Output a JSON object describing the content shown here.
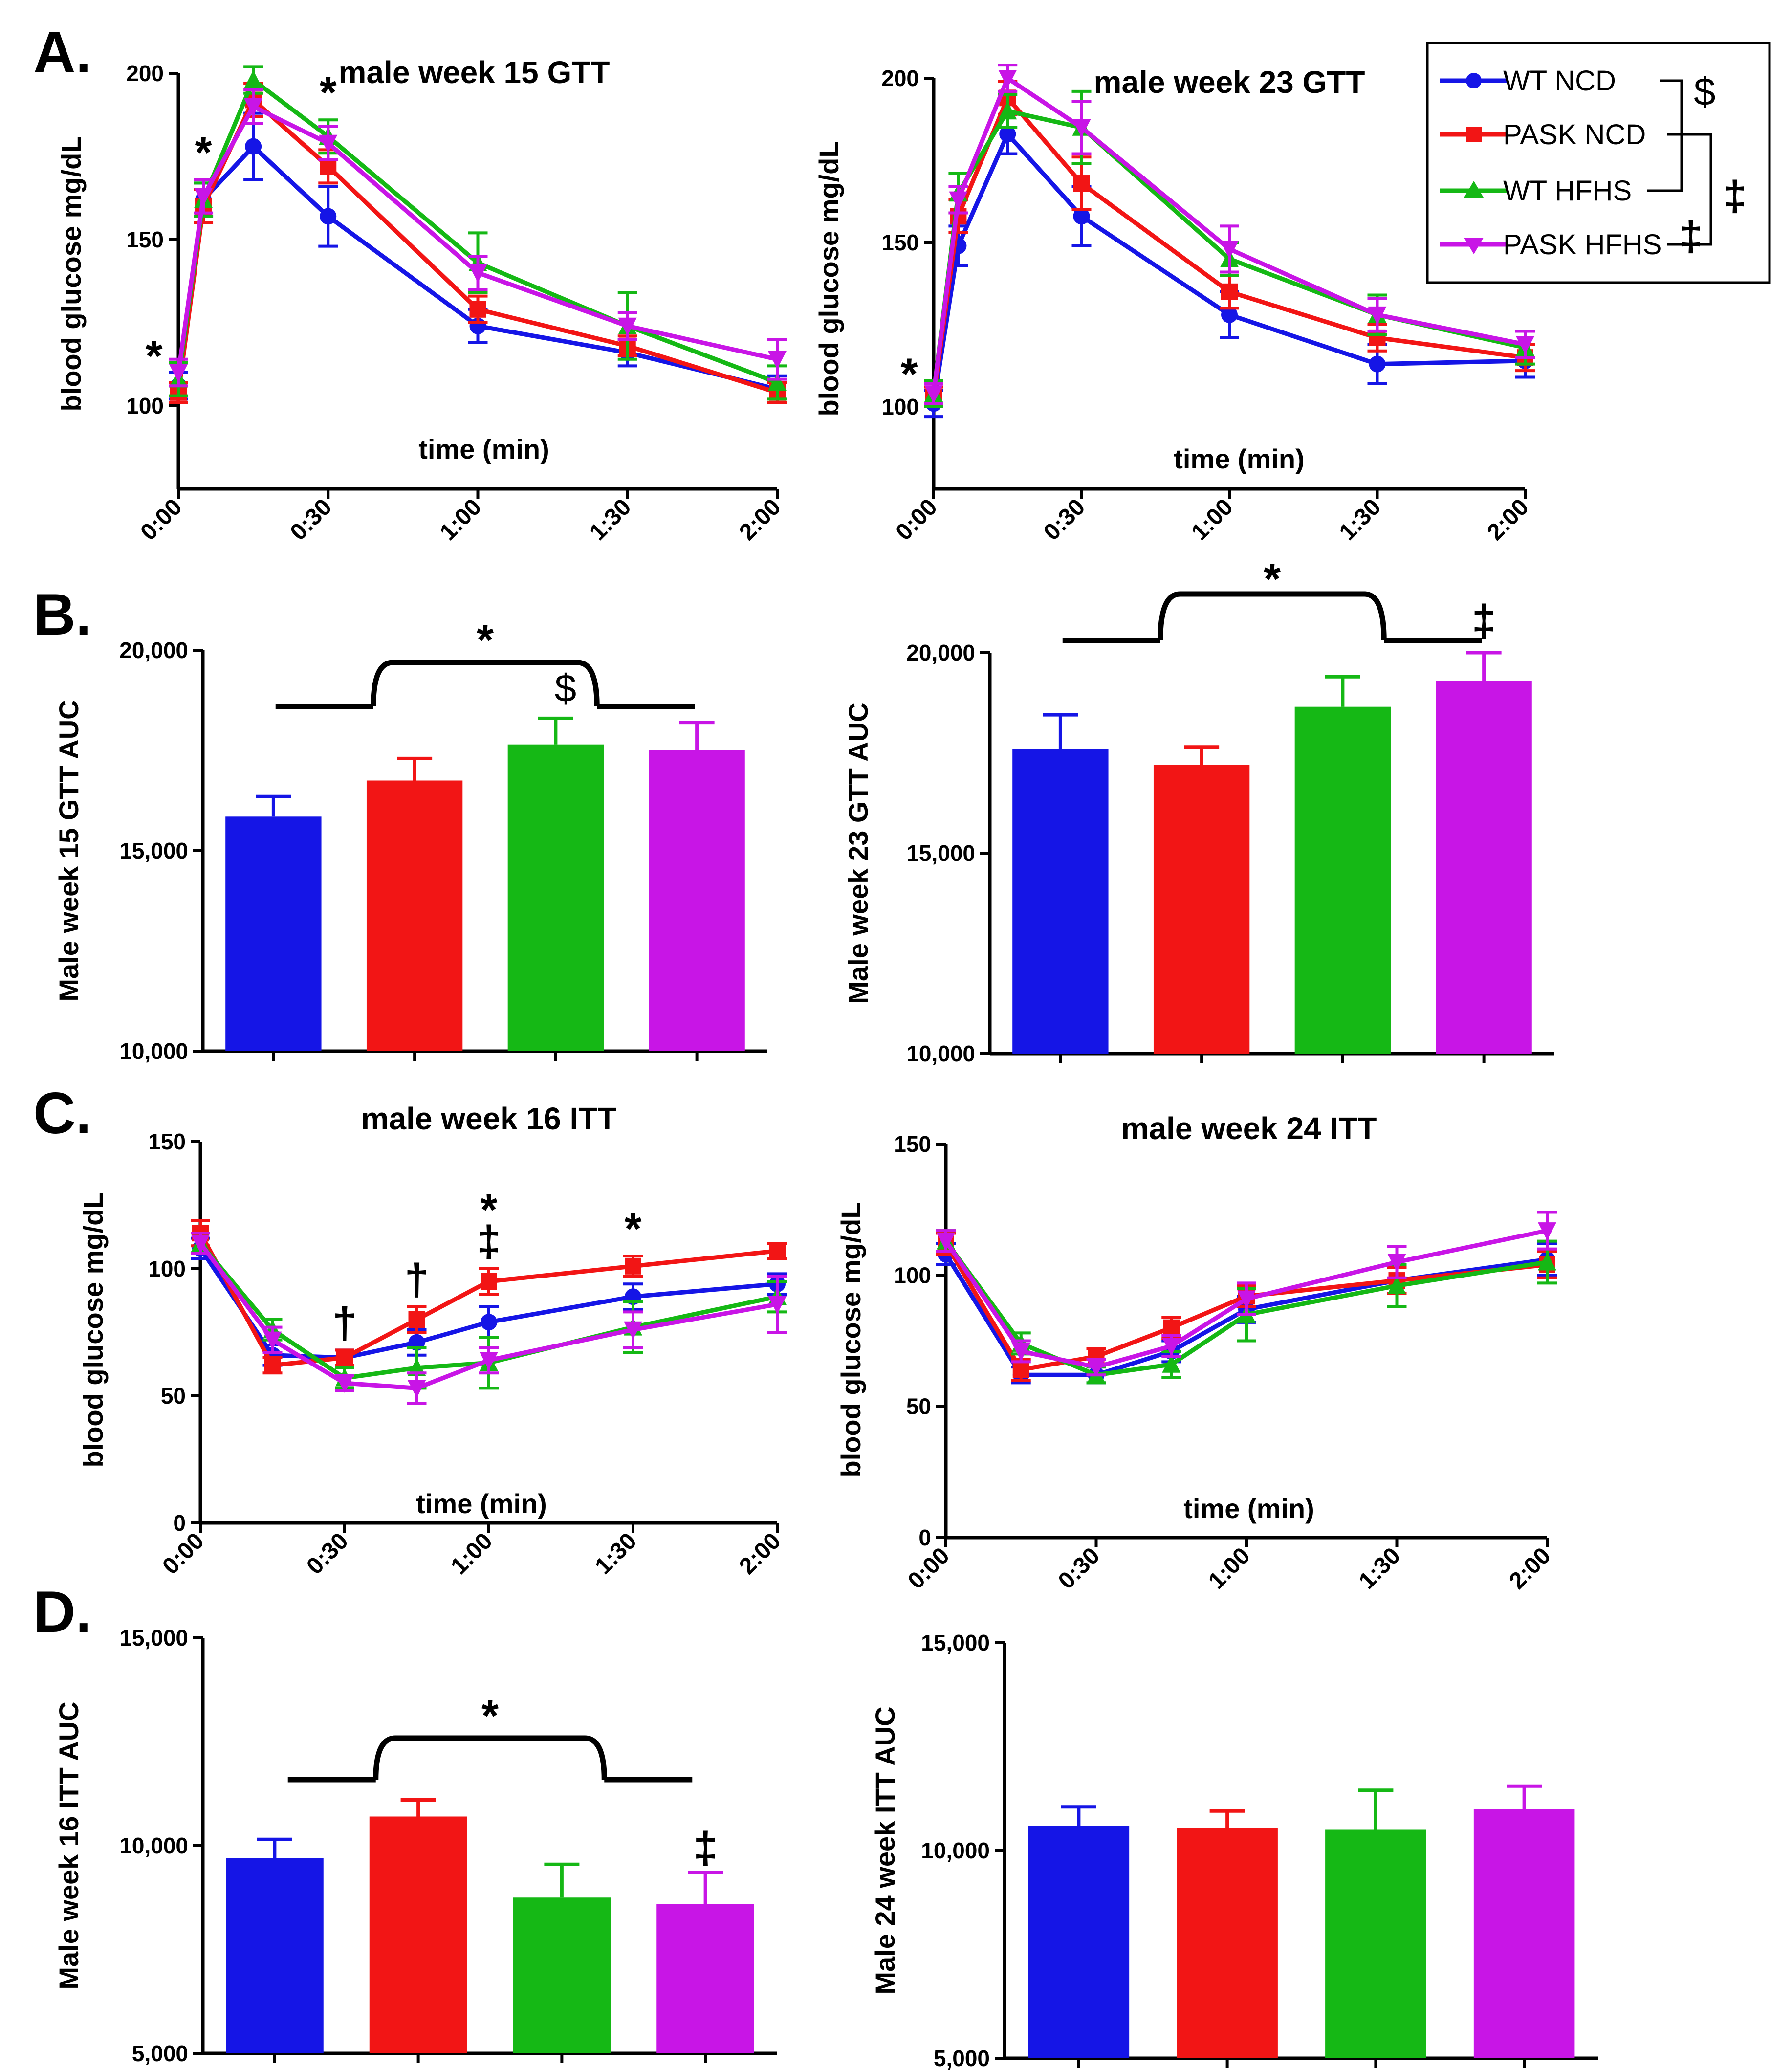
{
  "panels": [
    {
      "letter": "A."
    },
    {
      "letter": "B."
    },
    {
      "letter": "C."
    },
    {
      "letter": "D."
    }
  ],
  "legend": {
    "items": [
      {
        "label": "WT NCD",
        "color": "#1515e6",
        "marker": "circle"
      },
      {
        "label": "PASK NCD",
        "color": "#f21515",
        "marker": "square"
      },
      {
        "label": "WT HFHS",
        "color": "#15b815",
        "marker": "triangle-up"
      },
      {
        "label": "PASK HFHS",
        "color": "#c815e6",
        "marker": "triangle-down"
      }
    ],
    "brackets": [
      {
        "symbol": "$",
        "between": "WT NCD vs WT HFHS"
      },
      {
        "symbol": "‡",
        "between": "PASK NCD vs PASK HFHS"
      }
    ],
    "extra_symbol": "‡"
  },
  "chart_data": [
    {
      "id": "gtt15",
      "type": "line",
      "title": "male week 15 GTT",
      "xlabel": "time (min)",
      "ylabel": "blood glucose mg/dL",
      "x": [
        0,
        5,
        15,
        30,
        60,
        90,
        120
      ],
      "xlim": [
        0,
        120
      ],
      "xticks": [
        0,
        30,
        60,
        90,
        120
      ],
      "xtick_labels": [
        "0:00",
        "0:30",
        "1:00",
        "1:30",
        "2:00"
      ],
      "ylim": [
        75,
        200
      ],
      "yticks": [
        100,
        150,
        200
      ],
      "ytick_labels": [
        "100",
        "150",
        "200"
      ],
      "series": [
        {
          "name": "WT NCD",
          "values": [
            106,
            162,
            178,
            157,
            124,
            116,
            105
          ],
          "errors": [
            4,
            5,
            10,
            9,
            5,
            4,
            4
          ]
        },
        {
          "name": "PASK NCD",
          "values": [
            104,
            160,
            192,
            172,
            129,
            118,
            104
          ],
          "errors": [
            3,
            5,
            5,
            5,
            4,
            3,
            3
          ]
        },
        {
          "name": "WT HFHS",
          "values": [
            108,
            162,
            198,
            181,
            143,
            124,
            107
          ],
          "errors": [
            5,
            5,
            4,
            5,
            9,
            10,
            5
          ]
        },
        {
          "name": "PASK HFHS",
          "values": [
            110,
            163,
            190,
            179,
            140,
            124,
            114
          ],
          "errors": [
            4,
            5,
            5,
            5,
            5,
            4,
            6
          ]
        }
      ],
      "annotations": [
        {
          "symbol": "*",
          "x": 0
        },
        {
          "symbol": "*",
          "x": 5
        },
        {
          "symbol": "*",
          "x": 30
        }
      ]
    },
    {
      "id": "gtt23",
      "type": "line",
      "title": "male week 23 GTT",
      "xlabel": "time (min)",
      "ylabel": "blood glucose mg/dL",
      "x": [
        0,
        5,
        15,
        30,
        60,
        90,
        120
      ],
      "xlim": [
        0,
        120
      ],
      "xticks": [
        0,
        30,
        60,
        90,
        120
      ],
      "xtick_labels": [
        "0:00",
        "0:30",
        "1:00",
        "1:30",
        "2:00"
      ],
      "ylim": [
        75,
        200
      ],
      "yticks": [
        100,
        150,
        200
      ],
      "ytick_labels": [
        "100",
        "150",
        "200"
      ],
      "series": [
        {
          "name": "WT NCD",
          "values": [
            101,
            149,
            183,
            158,
            128,
            113,
            114
          ],
          "errors": [
            4,
            6,
            6,
            9,
            7,
            6,
            5
          ]
        },
        {
          "name": "PASK NCD",
          "values": [
            103,
            158,
            194,
            168,
            135,
            121,
            115
          ],
          "errors": [
            3,
            5,
            5,
            8,
            5,
            4,
            4
          ]
        },
        {
          "name": "WT HFHS",
          "values": [
            104,
            165,
            190,
            185,
            145,
            128,
            118
          ],
          "errors": [
            4,
            6,
            5,
            11,
            5,
            6,
            5
          ]
        },
        {
          "name": "PASK HFHS",
          "values": [
            104,
            163,
            200,
            185,
            148,
            128,
            119
          ],
          "errors": [
            3,
            4,
            4,
            8,
            7,
            5,
            4
          ]
        }
      ],
      "annotations": [
        {
          "symbol": "*",
          "x": 0
        }
      ]
    },
    {
      "id": "gttauc15",
      "type": "bar",
      "ylabel": "Male week 15 GTT AUC",
      "categories": [
        "WT NCD",
        "PASK NCD",
        "WT HFHS",
        "PASK HFHS"
      ],
      "values": [
        15850,
        16750,
        17650,
        17500
      ],
      "errors": [
        500,
        550,
        650,
        700
      ],
      "ylim": [
        10000,
        20000
      ],
      "yticks": [
        10000,
        15000,
        20000
      ],
      "ytick_labels": [
        "10,000",
        "15,000",
        "20,000"
      ],
      "annotations": [
        {
          "symbol": "*",
          "note": "NCD groups vs HFHS groups"
        },
        {
          "symbol": "$",
          "note": "above WT HFHS"
        }
      ]
    },
    {
      "id": "gttauc23",
      "type": "bar",
      "ylabel": "Male week 23 GTT AUC",
      "categories": [
        "WT NCD",
        "PASK NCD",
        "WT HFHS",
        "PASK HFHS"
      ],
      "values": [
        17600,
        17200,
        18650,
        19300
      ],
      "errors": [
        850,
        450,
        750,
        700
      ],
      "ylim": [
        10000,
        20000
      ],
      "yticks": [
        10000,
        15000,
        20000
      ],
      "ytick_labels": [
        "10,000",
        "15,000",
        "20,000"
      ],
      "annotations": [
        {
          "symbol": "*",
          "note": "NCD groups vs HFHS groups"
        },
        {
          "symbol": "‡",
          "note": "above PASK HFHS"
        }
      ]
    },
    {
      "id": "itt16",
      "type": "line",
      "title": "male week 16 ITT",
      "xlabel": "time (min)",
      "ylabel": "blood glucose mg/dL",
      "x": [
        0,
        15,
        30,
        45,
        60,
        90,
        120
      ],
      "xlim": [
        0,
        120
      ],
      "xticks": [
        0,
        30,
        60,
        90,
        120
      ],
      "xtick_labels": [
        "0:00",
        "0:30",
        "1:00",
        "1:30",
        "2:00"
      ],
      "ylim": [
        0,
        150
      ],
      "yticks": [
        0,
        50,
        100,
        150
      ],
      "ytick_labels": [
        "0",
        "50",
        "100",
        "150"
      ],
      "series": [
        {
          "name": "WT NCD",
          "values": [
            108,
            66,
            65,
            71,
            79,
            89,
            94
          ],
          "errors": [
            4,
            4,
            3,
            5,
            6,
            5,
            4
          ]
        },
        {
          "name": "PASK NCD",
          "values": [
            114,
            62,
            65,
            80,
            95,
            101,
            107
          ],
          "errors": [
            5,
            3,
            3,
            5,
            5,
            4,
            3
          ]
        },
        {
          "name": "WT HFHS",
          "values": [
            110,
            76,
            57,
            61,
            63,
            77,
            89
          ],
          "errors": [
            4,
            4,
            4,
            8,
            10,
            10,
            6
          ]
        },
        {
          "name": "PASK HFHS",
          "values": [
            110,
            72,
            55,
            53,
            64,
            76,
            86
          ],
          "errors": [
            4,
            5,
            3,
            6,
            5,
            7,
            11
          ]
        }
      ],
      "annotations": [
        {
          "symbol": "†",
          "x": 30
        },
        {
          "symbol": "†",
          "x": 45
        },
        {
          "symbol": "*",
          "x": 60
        },
        {
          "symbol": "‡",
          "x": 60
        },
        {
          "symbol": "*",
          "x": 90
        }
      ]
    },
    {
      "id": "itt24",
      "type": "line",
      "title": "male week 24 ITT",
      "xlabel": "time (min)",
      "ylabel": "blood glucose mg/dL",
      "x": [
        0,
        15,
        30,
        45,
        60,
        90,
        120
      ],
      "xlim": [
        0,
        120
      ],
      "xticks": [
        0,
        30,
        60,
        90,
        120
      ],
      "xtick_labels": [
        "0:00",
        "0:30",
        "1:00",
        "1:30",
        "2:00"
      ],
      "ylim": [
        0,
        150
      ],
      "yticks": [
        0,
        50,
        100,
        150
      ],
      "ytick_labels": [
        "0",
        "50",
        "100",
        "150"
      ],
      "series": [
        {
          "name": "WT NCD",
          "values": [
            108,
            62,
            62,
            71,
            87,
            98,
            106
          ],
          "errors": [
            4,
            3,
            3,
            4,
            5,
            5,
            6
          ]
        },
        {
          "name": "PASK NCD",
          "values": [
            112,
            64,
            69,
            80,
            92,
            98,
            104
          ],
          "errors": [
            4,
            4,
            3,
            4,
            4,
            5,
            5
          ]
        },
        {
          "name": "WT HFHS",
          "values": [
            113,
            74,
            62,
            66,
            85,
            96,
            105
          ],
          "errors": [
            4,
            4,
            3,
            5,
            10,
            8,
            8
          ]
        },
        {
          "name": "PASK HFHS",
          "values": [
            113,
            71,
            65,
            73,
            91,
            105,
            117
          ],
          "errors": [
            4,
            4,
            3,
            4,
            6,
            6,
            7
          ]
        }
      ]
    },
    {
      "id": "ittauc16",
      "type": "bar",
      "ylabel": "Male week 16 ITT AUC",
      "categories": [
        "WT NCD",
        "PASK NCD",
        "WT HFHS",
        "PASK HFHS"
      ],
      "values": [
        9700,
        10700,
        8750,
        8600
      ],
      "errors": [
        450,
        400,
        800,
        750
      ],
      "ylim": [
        5000,
        15000
      ],
      "yticks": [
        5000,
        10000,
        15000
      ],
      "ytick_labels": [
        "5,000",
        "10,000",
        "15,000"
      ],
      "annotations": [
        {
          "symbol": "*",
          "note": "NCD groups vs HFHS groups"
        },
        {
          "symbol": "‡",
          "note": "above PASK HFHS"
        }
      ]
    },
    {
      "id": "ittauc24",
      "type": "bar",
      "ylabel": "Male 24 week ITT AUC",
      "categories": [
        "WT NCD",
        "PASK NCD",
        "WT HFHS",
        "PASK HFHS"
      ],
      "values": [
        10600,
        10550,
        10500,
        11000
      ],
      "errors": [
        450,
        400,
        950,
        550
      ],
      "ylim": [
        5000,
        15000
      ],
      "yticks": [
        5000,
        10000,
        15000
      ],
      "ytick_labels": [
        "5,000",
        "10,000",
        "15,000"
      ]
    }
  ]
}
